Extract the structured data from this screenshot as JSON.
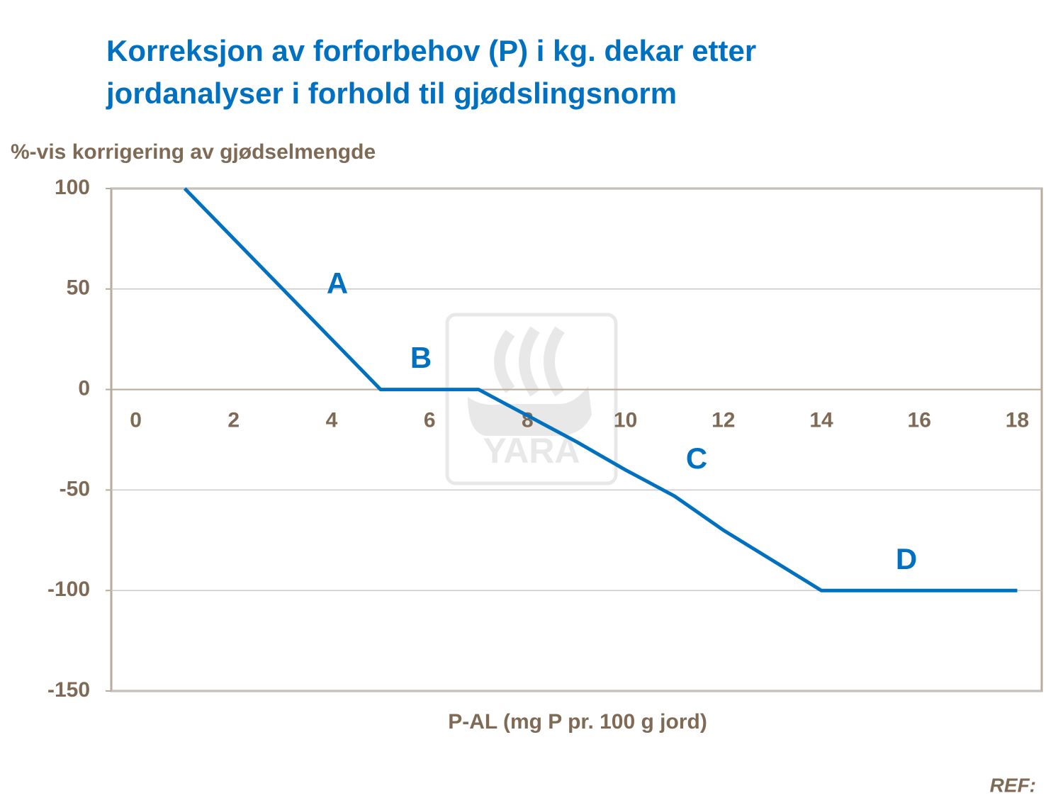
{
  "chart_data": {
    "type": "line",
    "title_lines": [
      "Korreksjon av forforbehov (P) i kg. dekar etter",
      "jordanalyser i forhold til gjødslingsnorm"
    ],
    "y_label": "%-vis korrigering av gjødselmengde",
    "x_label": "P-AL (mg P pr. 100 g jord)",
    "footer": "REF:",
    "watermark": "YARA",
    "annotations": [
      "A",
      "B",
      "C",
      "D"
    ],
    "x": [
      1,
      2,
      3,
      4,
      5,
      6,
      7,
      8,
      9,
      10,
      11,
      12,
      13,
      14,
      15,
      16,
      17,
      18
    ],
    "series": [
      {
        "color": "#0070c0",
        "values": [
          100,
          75,
          50,
          25,
          0,
          0,
          0,
          -13,
          -26,
          -40,
          -53,
          -70,
          -85,
          -100,
          -100,
          -100,
          -100,
          -100
        ]
      }
    ],
    "xlim": [
      -0.5,
      18.5
    ],
    "xticks": [
      0,
      2,
      4,
      6,
      8,
      10,
      12,
      14,
      16,
      18
    ],
    "ylim": [
      -150,
      100
    ],
    "yticks": [
      -150,
      -100,
      -50,
      0,
      50,
      100
    ],
    "grid": true
  }
}
